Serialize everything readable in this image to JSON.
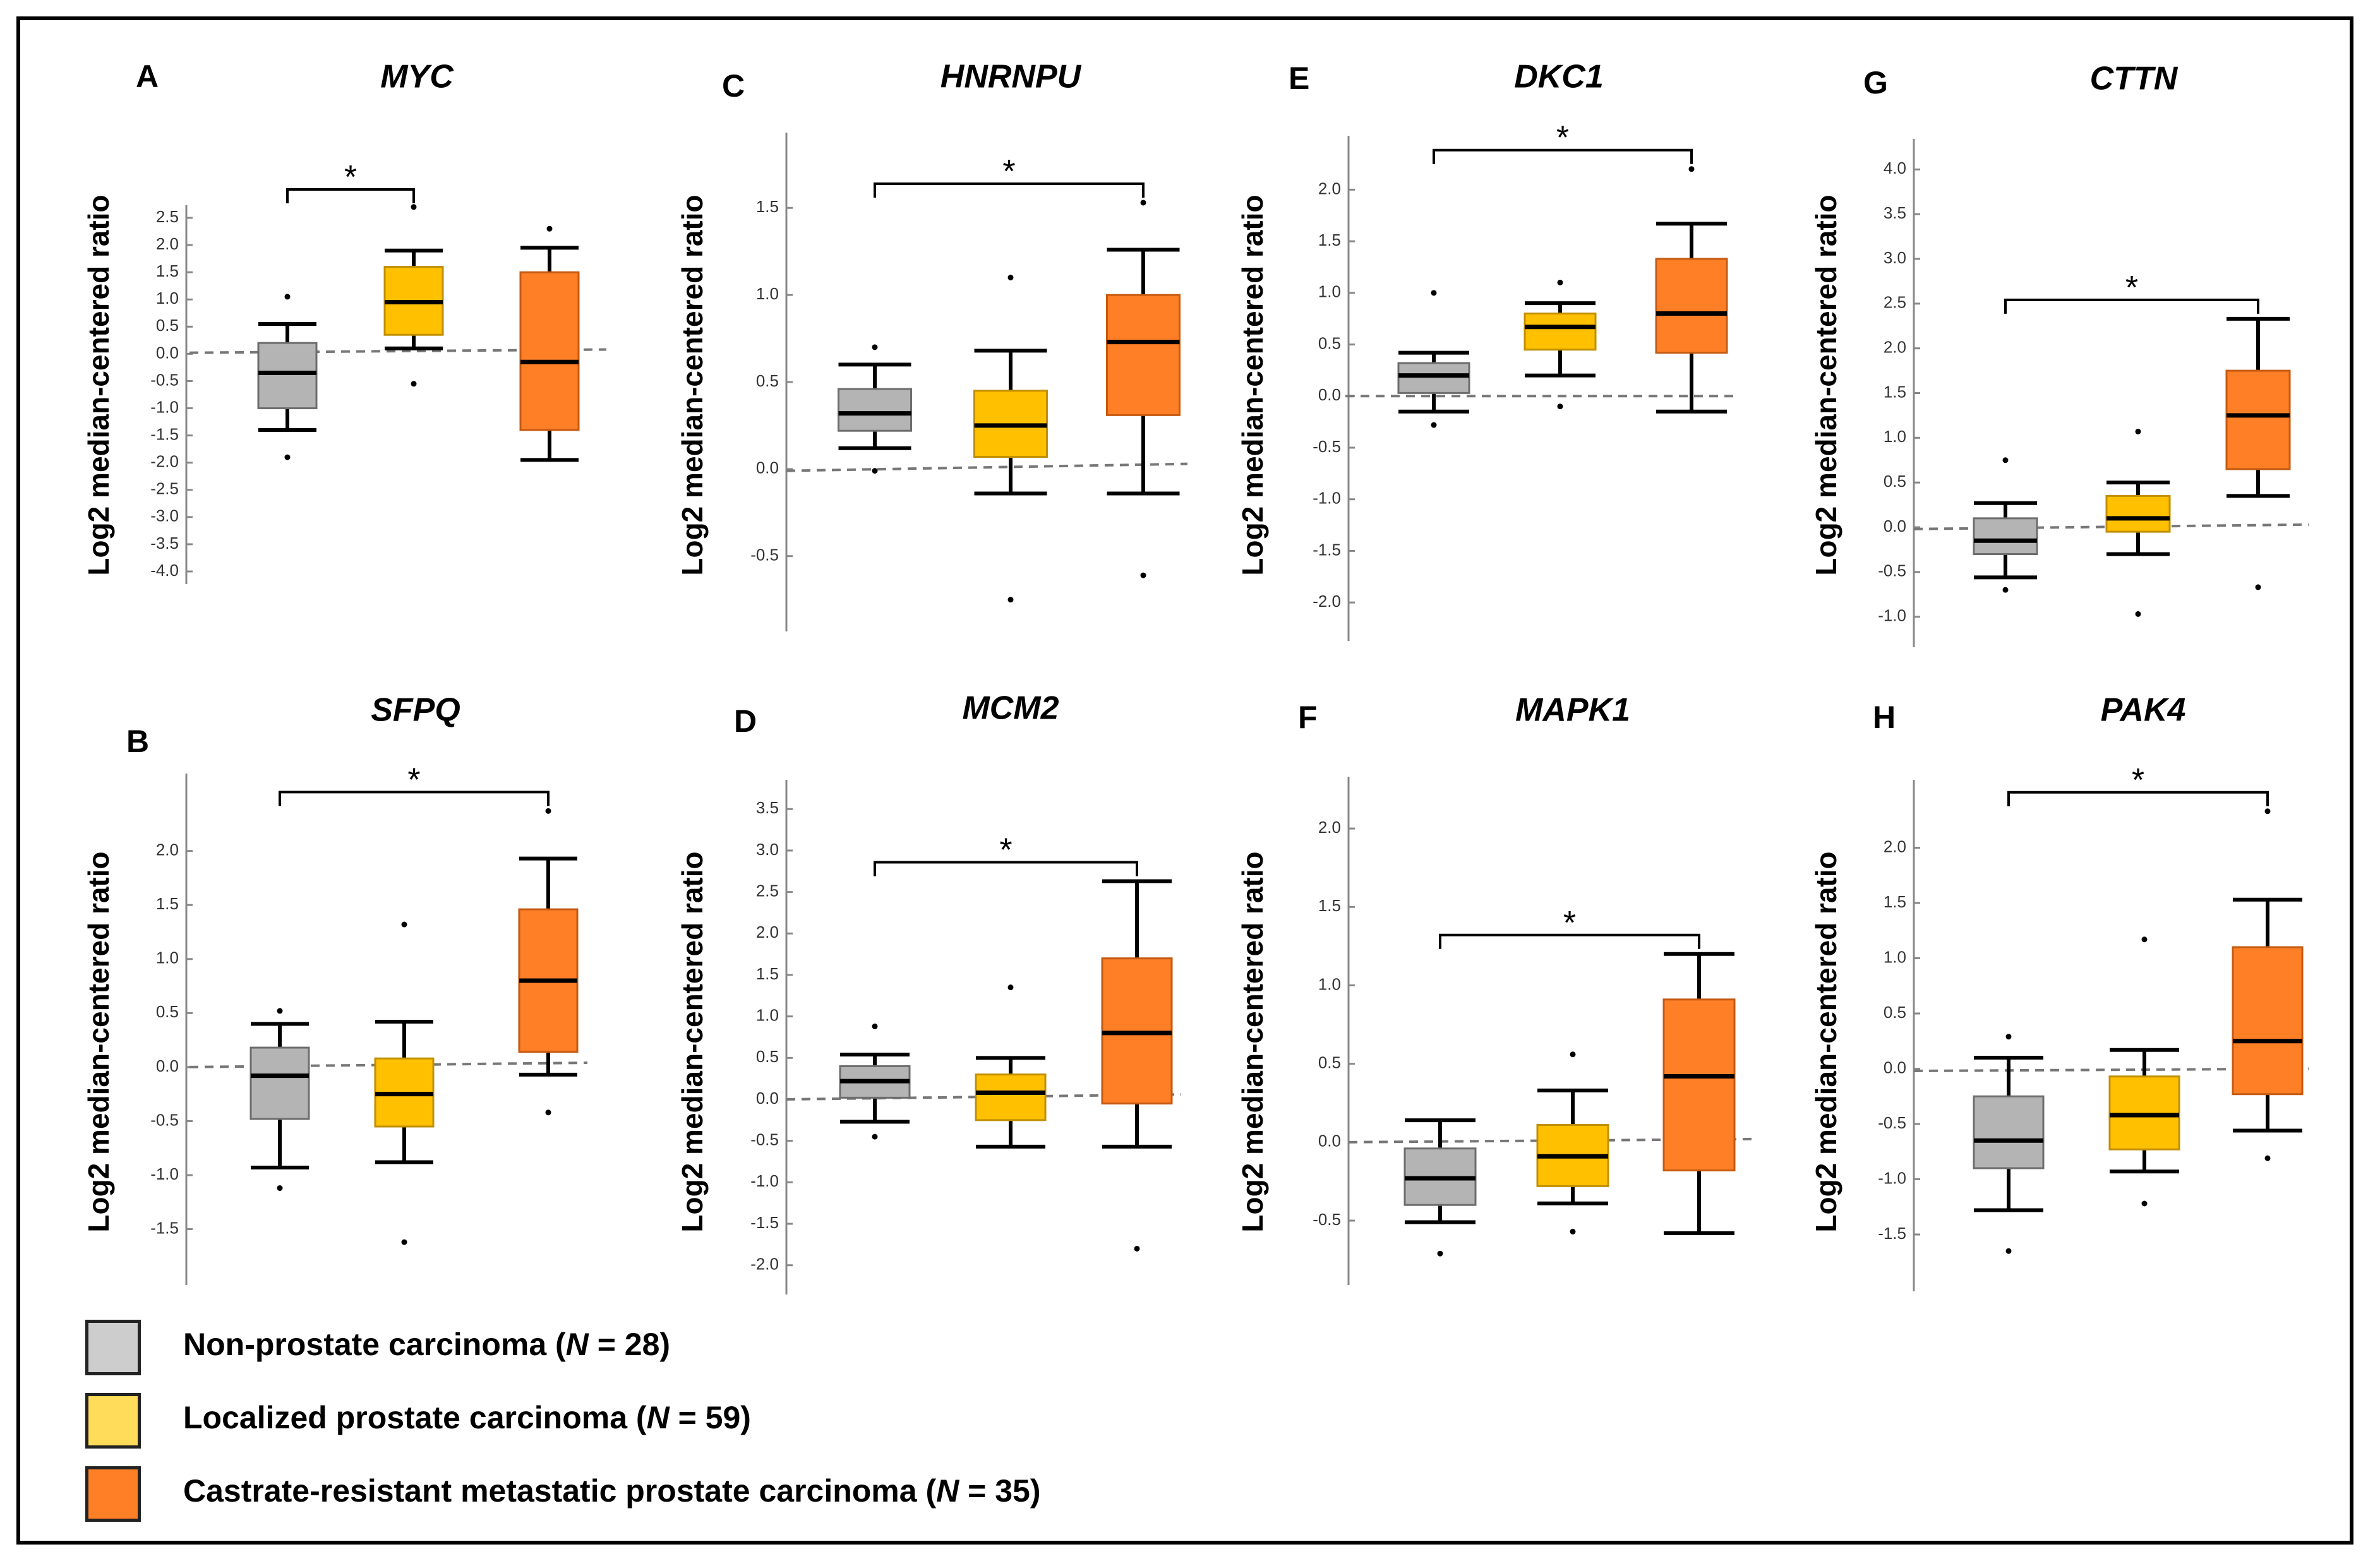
{
  "figure": {
    "ylabel": "Log2 median-centered ratio",
    "significance_mark": "*",
    "colors": {
      "non": "#b4b4b4",
      "loc": "#ffc000",
      "crpc": "#ff7f27",
      "axis": "#888888",
      "ref": "#777777"
    }
  },
  "legend": {
    "items": [
      {
        "name": "Non-prostate carcinoma",
        "n_prefix": "N",
        "n_value": "= 28",
        "color": "#cdcdcd"
      },
      {
        "name": "Localized prostate carcinoma",
        "n_prefix": "N",
        "n_value": "= 59",
        "color": "#ffdc5a"
      },
      {
        "name": "Castrate-resistant metastatic prostate carcinoma",
        "n_prefix": "N",
        "n_value": "= 35",
        "color": "#ff7f27"
      }
    ]
  },
  "chart_data": [
    {
      "type": "box",
      "panel": "A",
      "title": "MYC",
      "ylabel": "Log2 median-centered ratio",
      "ylim": [
        -4.0,
        2.5
      ],
      "yticks": [
        "2.5",
        "2.0",
        "1.5",
        "1.0",
        "0.5",
        "0.0",
        "-0.5",
        "-1.0",
        "-1.5",
        "-2.0",
        "-2.5",
        "-3.0",
        "-3.5",
        "-4.0"
      ],
      "yticks_values": [
        2.5,
        2.0,
        1.5,
        1.0,
        0.5,
        0.0,
        -0.5,
        -1.0,
        -1.5,
        -2.0,
        -2.5,
        -3.0,
        -3.5,
        -4.0
      ],
      "ref_line": [
        0.02,
        0.08
      ],
      "series": [
        {
          "name": "Non-prostate carcinoma",
          "min": -1.4,
          "q1": -1.0,
          "median": -0.35,
          "q3": 0.2,
          "max": 0.55,
          "outliers": [
            1.05,
            -1.9
          ]
        },
        {
          "name": "Localized prostate carcinoma",
          "min": 0.1,
          "q1": 0.35,
          "median": 0.95,
          "q3": 1.6,
          "max": 1.9,
          "outliers": [
            2.7,
            -0.55
          ]
        },
        {
          "name": "Castrate-resistant metastatic prostate carcinoma",
          "min": -1.95,
          "q1": -1.4,
          "median": -0.15,
          "q3": 1.5,
          "max": 1.95,
          "outliers": [
            2.3
          ]
        }
      ],
      "significance": [
        {
          "from": 0,
          "to": 1,
          "label": "*"
        }
      ]
    },
    {
      "type": "box",
      "panel": "B",
      "title": "SFPQ",
      "ylabel": "Log2 median-centered ratio",
      "ylim": [
        -1.9,
        2.6
      ],
      "yticks": [
        "2.0",
        "1.5",
        "1.0",
        "0.5",
        "0.0",
        "-0.5",
        "-1.0",
        "-1.5"
      ],
      "yticks_values": [
        2.0,
        1.5,
        1.0,
        0.5,
        0.0,
        -0.5,
        -1.0,
        -1.5
      ],
      "ref_line": [
        0.0,
        0.04
      ],
      "series": [
        {
          "name": "Non-prostate carcinoma",
          "min": -0.93,
          "q1": -0.48,
          "median": -0.08,
          "q3": 0.18,
          "max": 0.4,
          "outliers": [
            0.52,
            -1.12
          ]
        },
        {
          "name": "Localized prostate carcinoma",
          "min": -0.88,
          "q1": -0.55,
          "median": -0.25,
          "q3": 0.08,
          "max": 0.42,
          "outliers": [
            1.32,
            -1.62
          ]
        },
        {
          "name": "Castrate-resistant metastatic prostate carcinoma",
          "min": -0.07,
          "q1": 0.14,
          "median": 0.8,
          "q3": 1.46,
          "max": 1.93,
          "outliers": [
            2.37,
            -0.42
          ]
        }
      ],
      "significance": [
        {
          "from": 0,
          "to": 2,
          "label": "*"
        }
      ]
    },
    {
      "type": "box",
      "panel": "C",
      "title": "HNRNPU",
      "ylabel": "Log2 median-centered ratio",
      "ylim": [
        -0.86,
        1.86
      ],
      "yticks": [
        "1.5",
        "1.0",
        "0.5",
        "0.0",
        "-0.5"
      ],
      "yticks_values": [
        1.5,
        1.0,
        0.5,
        0.0,
        -0.5
      ],
      "ref_line": [
        -0.01,
        0.03
      ],
      "series": [
        {
          "name": "Non-prostate carcinoma",
          "min": 0.12,
          "q1": 0.22,
          "median": 0.32,
          "q3": 0.46,
          "max": 0.6,
          "outliers": [
            0.7,
            -0.01
          ]
        },
        {
          "name": "Localized prostate carcinoma",
          "min": -0.14,
          "q1": 0.07,
          "median": 0.25,
          "q3": 0.45,
          "max": 0.68,
          "outliers": [
            1.1,
            -0.75
          ]
        },
        {
          "name": "Castrate-resistant metastatic prostate carcinoma",
          "min": -0.14,
          "q1": 0.31,
          "median": 0.73,
          "q3": 1.0,
          "max": 1.26,
          "outliers": [
            1.53,
            -0.61
          ]
        }
      ],
      "significance": [
        {
          "from": 0,
          "to": 2,
          "label": "*"
        }
      ]
    },
    {
      "type": "box",
      "panel": "D",
      "title": "MCM2",
      "ylabel": "Log2 median-centered ratio",
      "ylim": [
        -2.2,
        3.7
      ],
      "yticks": [
        "3.5",
        "3.0",
        "2.5",
        "2.0",
        "1.5",
        "1.0",
        "0.5",
        "0.0",
        "-0.5",
        "-1.0",
        "-1.5",
        "-2.0"
      ],
      "yticks_values": [
        3.5,
        3.0,
        2.5,
        2.0,
        1.5,
        1.0,
        0.5,
        0.0,
        -0.5,
        -1.0,
        -1.5,
        -2.0
      ],
      "ref_line": [
        0.0,
        0.06
      ],
      "series": [
        {
          "name": "Non-prostate carcinoma",
          "min": -0.27,
          "q1": 0.02,
          "median": 0.22,
          "q3": 0.4,
          "max": 0.54,
          "outliers": [
            0.88,
            -0.45
          ]
        },
        {
          "name": "Localized prostate carcinoma",
          "min": -0.57,
          "q1": -0.25,
          "median": 0.08,
          "q3": 0.3,
          "max": 0.5,
          "outliers": [
            1.35
          ]
        },
        {
          "name": "Castrate-resistant metastatic prostate carcinoma",
          "min": -0.57,
          "q1": -0.05,
          "median": 0.8,
          "q3": 1.7,
          "max": 2.63,
          "outliers": [
            -1.8
          ]
        }
      ],
      "significance": [
        {
          "from": 0,
          "to": 2,
          "label": "*"
        }
      ]
    },
    {
      "type": "box",
      "panel": "E",
      "title": "DKC1",
      "ylabel": "Log2 median-centered ratio",
      "ylim": [
        -2.25,
        2.4
      ],
      "yticks": [
        "2.0",
        "1.5",
        "1.0",
        "0.5",
        "0.0",
        "-0.5",
        "-1.0",
        "-1.5",
        "-2.0"
      ],
      "yticks_values": [
        2.0,
        1.5,
        1.0,
        0.5,
        0.0,
        -0.5,
        -1.0,
        -1.5,
        -2.0
      ],
      "ref_line": [
        0.0,
        0.0
      ],
      "series": [
        {
          "name": "Non-prostate carcinoma",
          "min": -0.15,
          "q1": 0.03,
          "median": 0.2,
          "q3": 0.32,
          "max": 0.42,
          "outliers": [
            1.0,
            -0.28
          ]
        },
        {
          "name": "Localized prostate carcinoma",
          "min": 0.2,
          "q1": 0.45,
          "median": 0.67,
          "q3": 0.8,
          "max": 0.9,
          "outliers": [
            1.1,
            -0.1
          ]
        },
        {
          "name": "Castrate-resistant metastatic prostate carcinoma",
          "min": -0.15,
          "q1": 0.42,
          "median": 0.8,
          "q3": 1.33,
          "max": 1.67,
          "outliers": [
            2.2
          ]
        }
      ],
      "significance": [
        {
          "from": 0,
          "to": 2,
          "label": "*"
        }
      ]
    },
    {
      "type": "box",
      "panel": "F",
      "title": "MAPK1",
      "ylabel": "Log2 median-centered ratio",
      "ylim": [
        -0.83,
        2.25
      ],
      "yticks": [
        "2.0",
        "1.5",
        "1.0",
        "0.5",
        "0.0",
        "-0.5"
      ],
      "yticks_values": [
        2.0,
        1.5,
        1.0,
        0.5,
        0.0,
        -0.5
      ],
      "ref_line": [
        0.0,
        0.02
      ],
      "series": [
        {
          "name": "Non-prostate carcinoma",
          "min": -0.51,
          "q1": -0.4,
          "median": -0.23,
          "q3": -0.04,
          "max": 0.14,
          "outliers": [
            -0.71
          ]
        },
        {
          "name": "Localized prostate carcinoma",
          "min": -0.39,
          "q1": -0.28,
          "median": -0.09,
          "q3": 0.11,
          "max": 0.33,
          "outliers": [
            0.56,
            -0.57
          ]
        },
        {
          "name": "Castrate-resistant metastatic prostate carcinoma",
          "min": -0.58,
          "q1": -0.18,
          "median": 0.42,
          "q3": 0.91,
          "max": 1.2,
          "outliers": []
        }
      ],
      "significance": [
        {
          "from": 0,
          "to": 2,
          "label": "*"
        }
      ]
    },
    {
      "type": "box",
      "panel": "G",
      "title": "CTTN",
      "ylabel": "Log2 median-centered ratio",
      "ylim": [
        -1.2,
        4.2
      ],
      "yticks": [
        "4.0",
        "3.5",
        "3.0",
        "2.5",
        "2.0",
        "1.5",
        "1.0",
        "0.5",
        "0.0",
        "-0.5",
        "-1.0"
      ],
      "yticks_values": [
        4.0,
        3.5,
        3.0,
        2.5,
        2.0,
        1.5,
        1.0,
        0.5,
        0.0,
        -0.5,
        -1.0
      ],
      "ref_line": [
        -0.02,
        0.03
      ],
      "series": [
        {
          "name": "Non-prostate carcinoma",
          "min": -0.56,
          "q1": -0.3,
          "median": -0.15,
          "q3": 0.1,
          "max": 0.27,
          "outliers": [
            0.75,
            -0.7
          ]
        },
        {
          "name": "Localized prostate carcinoma",
          "min": -0.3,
          "q1": -0.05,
          "median": 0.1,
          "q3": 0.35,
          "max": 0.5,
          "outliers": [
            1.07,
            -0.97
          ]
        },
        {
          "name": "Castrate-resistant metastatic prostate carcinoma",
          "min": 0.35,
          "q1": 0.65,
          "median": 1.25,
          "q3": 1.75,
          "max": 2.33,
          "outliers": [
            -0.67
          ]
        }
      ],
      "significance": [
        {
          "from": 0,
          "to": 2,
          "label": "*"
        }
      ]
    },
    {
      "type": "box",
      "panel": "H",
      "title": "PAK4",
      "ylabel": "Log2 median-centered ratio",
      "ylim": [
        -1.9,
        2.5
      ],
      "yticks": [
        "2.0",
        "1.5",
        "1.0",
        "0.5",
        "0.0",
        "-0.5",
        "-1.0",
        "-1.5"
      ],
      "yticks_values": [
        2.0,
        1.5,
        1.0,
        0.5,
        0.0,
        -0.5,
        -1.0,
        -1.5
      ],
      "ref_line": [
        -0.02,
        0.0
      ],
      "series": [
        {
          "name": "Non-prostate carcinoma",
          "min": -1.28,
          "q1": -0.9,
          "median": -0.65,
          "q3": -0.25,
          "max": 0.1,
          "outliers": [
            0.29,
            -1.65
          ]
        },
        {
          "name": "Localized prostate carcinoma",
          "min": -0.93,
          "q1": -0.73,
          "median": -0.42,
          "q3": -0.07,
          "max": 0.17,
          "outliers": [
            1.17,
            -1.22
          ]
        },
        {
          "name": "Castrate-resistant metastatic prostate carcinoma",
          "min": -0.56,
          "q1": -0.23,
          "median": 0.25,
          "q3": 1.1,
          "max": 1.53,
          "outliers": [
            2.33,
            -0.81
          ]
        }
      ],
      "significance": [
        {
          "from": 0,
          "to": 2,
          "label": "*"
        }
      ]
    }
  ]
}
